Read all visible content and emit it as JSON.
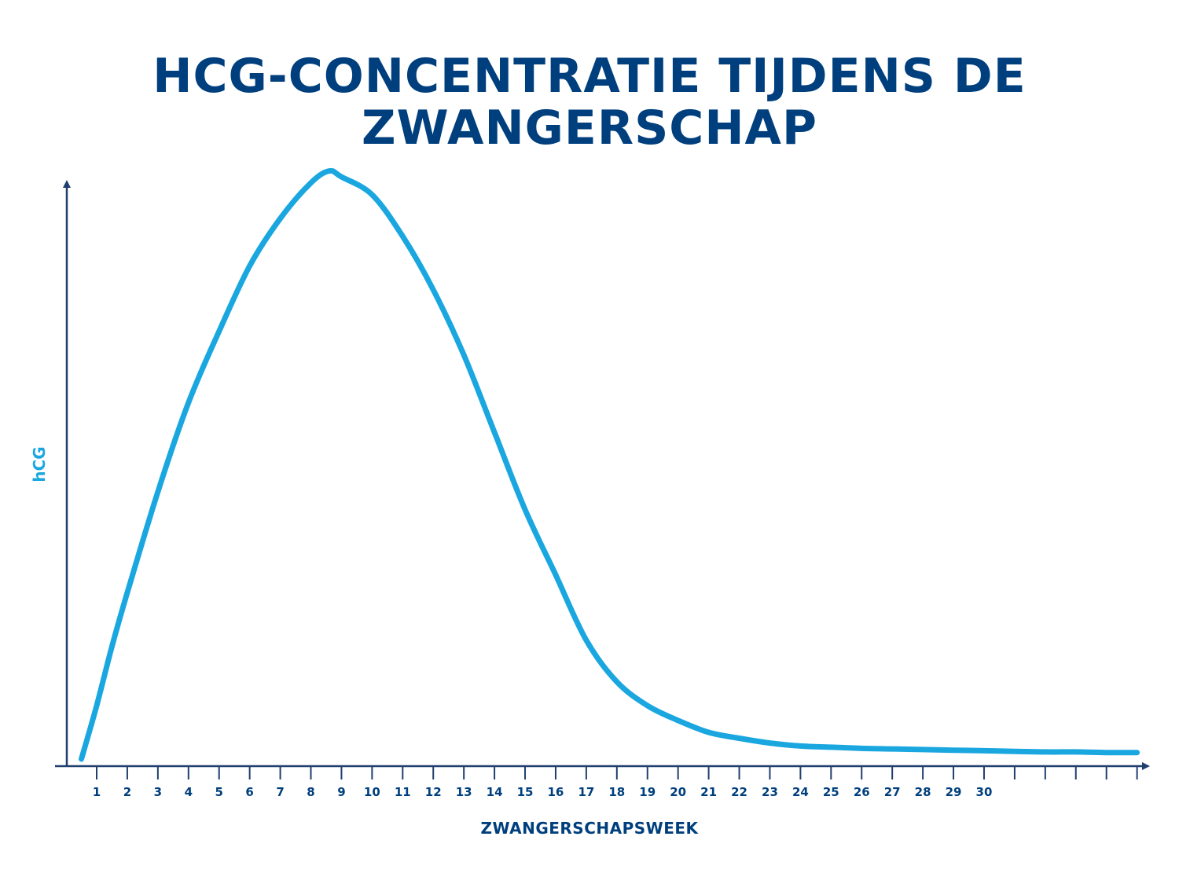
{
  "chart_data": {
    "type": "line",
    "title_lines": [
      "HCG-CONCENTRATIE TIJDENS DE",
      "ZWANGERSCHAP"
    ],
    "xlabel": "ZWANGERSCHAPSWEEK",
    "ylabel": "hCG",
    "x_tick_labels": [
      "1",
      "2",
      "3",
      "4",
      "5",
      "6",
      "7",
      "8",
      "9",
      "10",
      "11",
      "12",
      "13",
      "14",
      "15",
      "16",
      "17",
      "18",
      "19",
      "20",
      "21",
      "22",
      "23",
      "24",
      "25",
      "26",
      "27",
      "28",
      "29",
      "30"
    ],
    "x_unlabeled_ticks": 5,
    "y_ticks": false,
    "grid": false,
    "colors": {
      "title": "#003f7d",
      "axis": "#1f3f6e",
      "line": "#1aa7e0",
      "ylabel": "#1aa7e0"
    },
    "series": [
      {
        "x": [
          0.5,
          1,
          1.5,
          2,
          3,
          4,
          5,
          6,
          7,
          8,
          8.6,
          9,
          10,
          11,
          12,
          13,
          14,
          15,
          16,
          17,
          18,
          19,
          20,
          21,
          22,
          23,
          24,
          25,
          26,
          27,
          28,
          29,
          30,
          31,
          32,
          33,
          34,
          35
        ],
        "y": [
          0.0,
          0.09,
          0.19,
          0.28,
          0.45,
          0.6,
          0.72,
          0.83,
          0.91,
          0.97,
          0.99,
          0.98,
          0.95,
          0.88,
          0.79,
          0.68,
          0.55,
          0.42,
          0.31,
          0.2,
          0.13,
          0.09,
          0.065,
          0.045,
          0.035,
          0.027,
          0.022,
          0.02,
          0.018,
          0.017,
          0.016,
          0.015,
          0.014,
          0.013,
          0.012,
          0.012,
          0.011,
          0.011
        ]
      }
    ],
    "xlim": [
      0,
      35.5
    ],
    "ylim": [
      0,
      1
    ]
  }
}
